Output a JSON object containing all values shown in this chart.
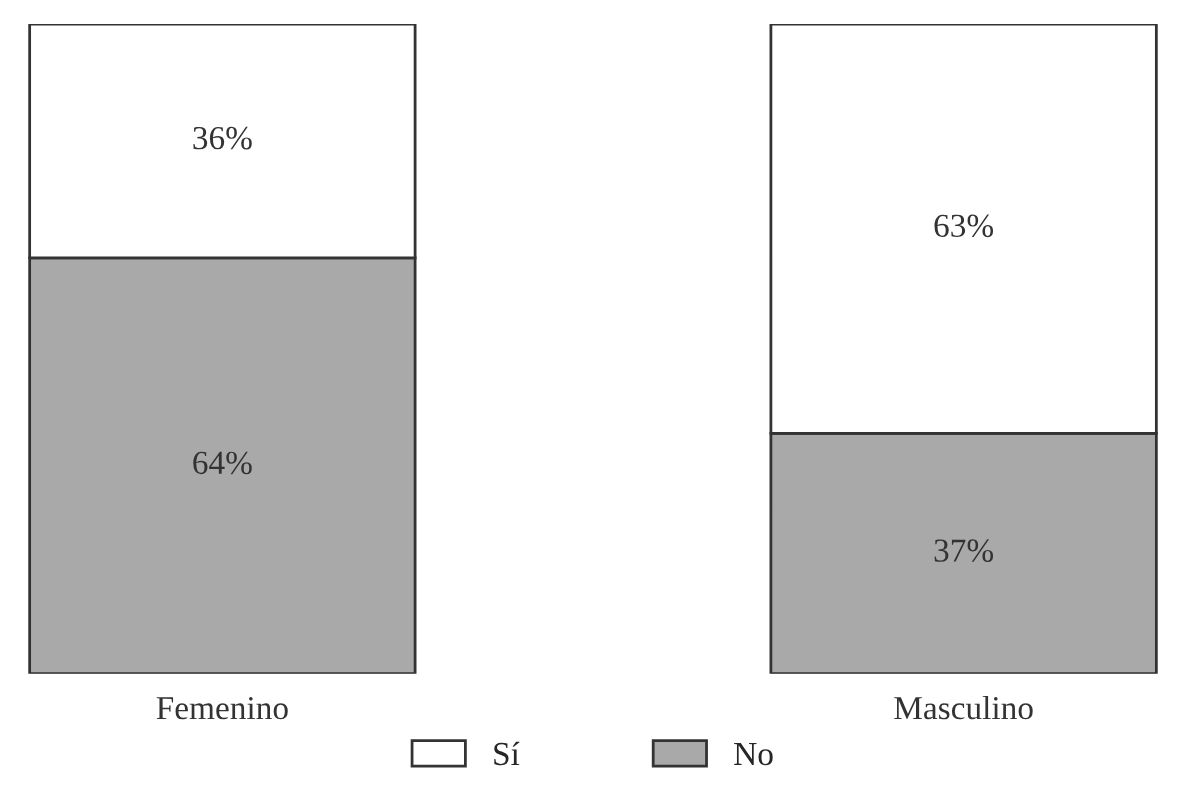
{
  "chart_data": {
    "type": "bar",
    "stacked": true,
    "categories": [
      "Femenino",
      "Masculino"
    ],
    "series": [
      {
        "name": "No",
        "color": "#a9a9a9",
        "values": [
          64,
          37
        ],
        "value_labels": [
          "64%",
          "37%"
        ]
      },
      {
        "name": "Sí",
        "color": "#ffffff",
        "values": [
          36,
          63
        ],
        "value_labels": [
          "36%",
          "63%"
        ]
      }
    ],
    "legend": "bottom"
  }
}
